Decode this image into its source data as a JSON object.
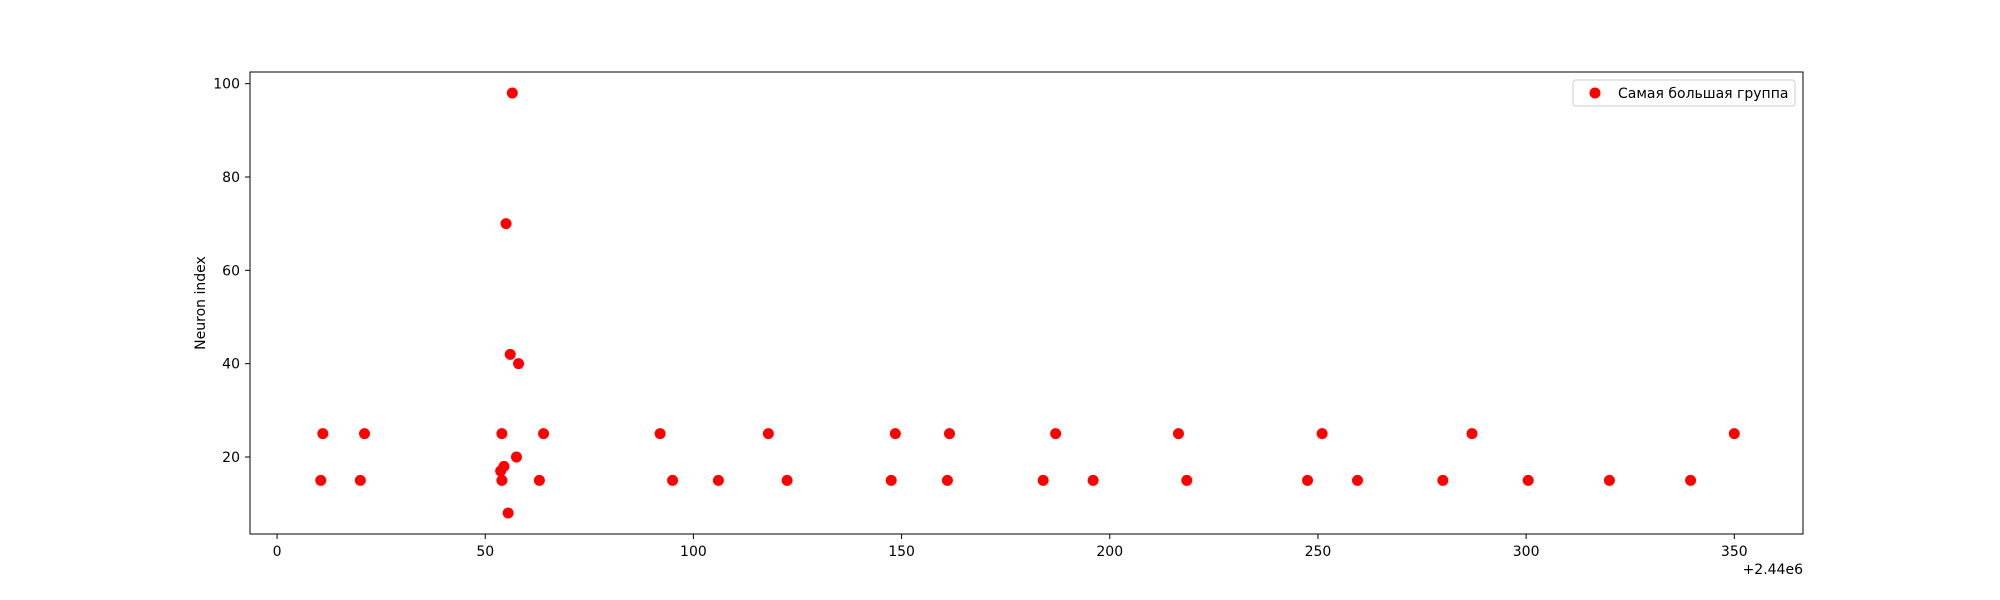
{
  "chart_data": {
    "type": "scatter",
    "title": "",
    "xlabel": "",
    "ylabel": "Neuron index",
    "x_offset_label": "+2.44e6",
    "xlim": [
      -6.5,
      366.5
    ],
    "ylim": [
      3.5,
      102.5
    ],
    "x_ticks": [
      0,
      50,
      100,
      150,
      200,
      250,
      300,
      350
    ],
    "y_ticks": [
      20,
      40,
      60,
      80,
      100
    ],
    "grid": false,
    "legend_position": "top-right",
    "series": [
      {
        "name": "Самая большая группа",
        "color": "#ff0000",
        "points": [
          {
            "x": 10.5,
            "y": 15
          },
          {
            "x": 11,
            "y": 25
          },
          {
            "x": 20,
            "y": 15
          },
          {
            "x": 21,
            "y": 25
          },
          {
            "x": 53.7,
            "y": 17
          },
          {
            "x": 54,
            "y": 25
          },
          {
            "x": 54,
            "y": 15
          },
          {
            "x": 54.5,
            "y": 18
          },
          {
            "x": 55,
            "y": 70
          },
          {
            "x": 55.5,
            "y": 8
          },
          {
            "x": 56,
            "y": 42
          },
          {
            "x": 56.5,
            "y": 98
          },
          {
            "x": 57.5,
            "y": 20
          },
          {
            "x": 58,
            "y": 40
          },
          {
            "x": 63,
            "y": 15
          },
          {
            "x": 64,
            "y": 25
          },
          {
            "x": 92,
            "y": 25
          },
          {
            "x": 95,
            "y": 15
          },
          {
            "x": 106,
            "y": 15
          },
          {
            "x": 118,
            "y": 25
          },
          {
            "x": 122.5,
            "y": 15
          },
          {
            "x": 147.5,
            "y": 15
          },
          {
            "x": 148.5,
            "y": 25
          },
          {
            "x": 161,
            "y": 15
          },
          {
            "x": 161.5,
            "y": 25
          },
          {
            "x": 184,
            "y": 15
          },
          {
            "x": 187,
            "y": 25
          },
          {
            "x": 196,
            "y": 15
          },
          {
            "x": 216.5,
            "y": 25
          },
          {
            "x": 218.5,
            "y": 15
          },
          {
            "x": 247.5,
            "y": 15
          },
          {
            "x": 251,
            "y": 25
          },
          {
            "x": 259.5,
            "y": 15
          },
          {
            "x": 280,
            "y": 15
          },
          {
            "x": 287,
            "y": 25
          },
          {
            "x": 300.5,
            "y": 15
          },
          {
            "x": 320,
            "y": 15
          },
          {
            "x": 339.5,
            "y": 15
          },
          {
            "x": 350,
            "y": 25
          }
        ]
      }
    ]
  }
}
